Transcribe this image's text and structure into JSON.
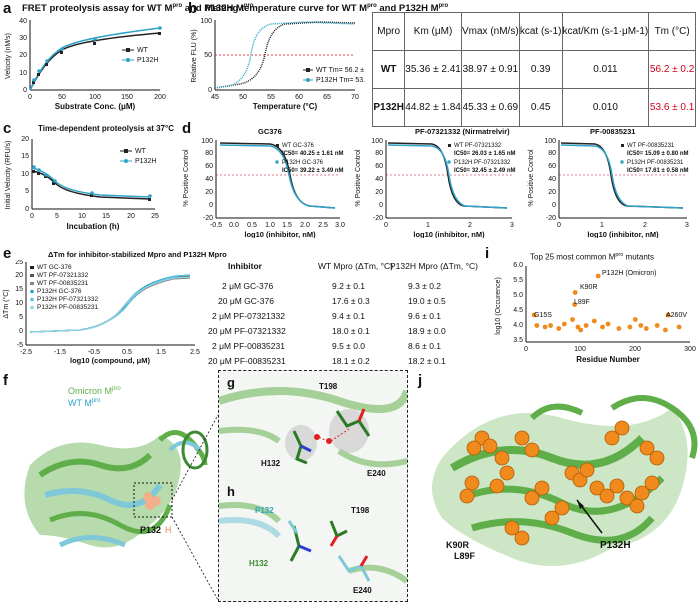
{
  "panels": {
    "a": {
      "label": "a",
      "title": "FRET proteolysis assay for WT M",
      "title_sup": "pro",
      "title_mid": " and P132H M",
      "title_sup2": "pro",
      "xlabel": "Substrate Conc. (μM)",
      "ylabel": "Velocity (nM/s)",
      "legend": [
        "WT",
        "P132H"
      ]
    },
    "b": {
      "label": "b",
      "title": "Melting temperature curve for WT M",
      "title_sup": "pro",
      "title_mid": " and P132H M",
      "title_sup2": "pro",
      "xlabel": "Temperature (°C)",
      "ylabel": "Relative FLU (%)",
      "legend": [
        "WT Tm= 56.2 ± 0.2 °C",
        "P132H Tm= 53.6 ± 0.1 °C"
      ]
    },
    "c": {
      "label": "c",
      "title": "Time-dependent proteolysis at 37°C",
      "xlabel": "Incubation (h)",
      "ylabel": "Initial Velocity (RFU/s)",
      "legend": [
        "WT",
        "P132H"
      ]
    },
    "d": {
      "label": "d",
      "ylabel": "% Positive Control",
      "xlabel": "log10 (inhibitor, nM)",
      "sub": [
        {
          "title": "GC376",
          "wt": "WT GC-376",
          "wt_ic": "IC50= 40.25 ± 1.61 nM",
          "mu": "P132H GC-376",
          "mu_ic": "IC50= 39.22 ± 3.49 nM"
        },
        {
          "title": "PF-07321332 (Nirmatrelvir)",
          "wt": "WT PF-07321332",
          "wt_ic": "IC50= 26.03 ± 1.65 nM",
          "mu": "P132H PF-07321332",
          "mu_ic": "IC50= 32.45 ± 2.49 nM"
        },
        {
          "title": "PF-00835231",
          "wt": "WT PF-00835231",
          "wt_ic": "IC50= 15.09 ± 0.80 nM",
          "mu": "P132H PF-00835231",
          "mu_ic": "IC50= 17.61 ± 0.58 nM"
        }
      ]
    },
    "e": {
      "label": "e",
      "title": "ΔTm for inhibitor-stabilized Mpro and P132H Mpro",
      "xlabel": "log10 (compound, μM)",
      "ylabel": "ΔTm (°C)",
      "legend": [
        "WT GC-376",
        "WT PF-07321332",
        "WT PF-00835231",
        "P132H GC-376",
        "P132H PF-07321332",
        "P132H PF-00835231"
      ],
      "table_head": [
        "Inhibitor",
        "WT Mpro (ΔTm, °C)",
        "P132H Mpro (ΔTm, °C)"
      ],
      "table_rows": [
        [
          "2 μM GC-376",
          "9.2 ± 0.1",
          "9.3 ± 0.2"
        ],
        [
          "20 μM GC-376",
          "17.6 ± 0.3",
          "19.0 ± 0.5"
        ],
        [
          "2 μM PF-07321332",
          "9.4 ± 0.1",
          "9.6 ± 0.1"
        ],
        [
          "20 μM PF-07321332",
          "18.0 ± 0.1",
          "18.9 ± 0.0"
        ],
        [
          "2 μM PF-00835231",
          "9.5 ± 0.0",
          "8.6 ± 0.1"
        ],
        [
          "20 μM PF-00835231",
          "18.1 ± 0.2",
          "18.2 ± 0.1"
        ]
      ]
    },
    "f": {
      "label": "f",
      "legend1": "Omicron M",
      "legend2": "WT M",
      "sup": "pro",
      "residue": "P132",
      "residue_suffix": "H"
    },
    "g": {
      "label": "g",
      "residues": [
        "T198",
        "H132",
        "E240"
      ]
    },
    "h": {
      "label": "h",
      "residues": [
        "P132",
        "T198",
        "H132",
        "E240"
      ]
    },
    "i": {
      "label": "i",
      "title": "Top 25 most common M",
      "title_sup": "pro",
      "title_end": " mutants",
      "xlabel": "Residue Number",
      "ylabel": "log10 (Occurence)",
      "annotations": [
        "P132H (Omicron)",
        "K90R",
        "L89F",
        "G15S",
        "A260V"
      ]
    },
    "j": {
      "label": "j",
      "labels": [
        "K90R",
        "L89F",
        "P132H"
      ]
    }
  },
  "kinetics_table": {
    "headers": [
      "Mpro",
      "Km (μM)",
      "Vmax (nM/s)",
      "kcat (s-1)",
      "kcat/Km (s-1·μM-1)",
      "Tm (°C)"
    ],
    "rows": [
      [
        "WT",
        "35.36 ± 2.41",
        "38.97 ± 0.91",
        "0.39",
        "0.011",
        "56.2 ± 0.2"
      ],
      [
        "P132H",
        "44.82 ± 1.84",
        "45.33 ± 0.69",
        "0.45",
        "0.010",
        "53.6 ± 0.1"
      ]
    ]
  },
  "colors": {
    "wt": "#222222",
    "p132h": "#2ea3c8",
    "red": "#d0021b",
    "green": "#5fae4a",
    "cyan": "#7fc8d8",
    "orange": "#f08a1c",
    "salmon": "#f2b08a"
  },
  "chart_data": [
    {
      "type": "line",
      "panel": "a",
      "xlim": [
        0,
        200
      ],
      "ylim": [
        0,
        40
      ],
      "series": [
        {
          "name": "WT",
          "x": [
            0,
            6,
            12,
            25,
            50,
            100,
            200
          ],
          "y": [
            0,
            5,
            10,
            15,
            23,
            28,
            33
          ]
        },
        {
          "name": "P132H",
          "x": [
            0,
            6,
            12,
            25,
            50,
            100,
            200
          ],
          "y": [
            0,
            5,
            11,
            16,
            24,
            30,
            36
          ]
        }
      ]
    },
    {
      "type": "line",
      "panel": "b",
      "xlim": [
        45,
        70
      ],
      "ylim": [
        0,
        100
      ],
      "series": [
        {
          "name": "WT Tm= 56.2 ± 0.2 °C",
          "tm": 56.2
        },
        {
          "name": "P132H Tm= 53.6 ± 0.1 °C",
          "tm": 53.6
        }
      ]
    },
    {
      "type": "line",
      "panel": "c",
      "xlim": [
        0,
        25
      ],
      "ylim": [
        0,
        20
      ],
      "series": [
        {
          "name": "WT",
          "x": [
            0,
            1,
            2,
            4,
            6,
            12,
            24
          ],
          "y": [
            11,
            10.5,
            10,
            8,
            6,
            4,
            3
          ]
        },
        {
          "name": "P132H",
          "x": [
            0,
            1,
            2,
            4,
            6,
            12,
            24
          ],
          "y": [
            12,
            11,
            10,
            8.5,
            7,
            5,
            3.5
          ]
        }
      ]
    },
    {
      "type": "line",
      "panel": "d-GC376",
      "xlim": [
        -0.5,
        3
      ],
      "ylim": [
        -20,
        120
      ],
      "series": [
        {
          "name": "WT GC-376",
          "ic50": 40.25
        },
        {
          "name": "P132H GC-376",
          "ic50": 39.22
        }
      ]
    },
    {
      "type": "line",
      "panel": "d-PF-07321332",
      "xlim": [
        0,
        3
      ],
      "ylim": [
        -20,
        120
      ],
      "series": [
        {
          "name": "WT PF-07321332",
          "ic50": 26.03
        },
        {
          "name": "P132H PF-07321332",
          "ic50": 32.45
        }
      ]
    },
    {
      "type": "line",
      "panel": "d-PF-00835231",
      "xlim": [
        0,
        3
      ],
      "ylim": [
        -20,
        120
      ],
      "series": [
        {
          "name": "WT PF-00835231",
          "ic50": 15.09
        },
        {
          "name": "P132H PF-00835231",
          "ic50": 17.61
        }
      ]
    },
    {
      "type": "line",
      "panel": "e",
      "xlim": [
        -2.5,
        2.5
      ],
      "ylim": [
        -5,
        25
      ],
      "series": [
        {
          "name": "WT GC-376"
        },
        {
          "name": "WT PF-07321332"
        },
        {
          "name": "WT PF-00835231"
        },
        {
          "name": "P132H GC-376"
        },
        {
          "name": "P132H PF-07321332"
        },
        {
          "name": "P132H PF-00835231"
        }
      ]
    },
    {
      "type": "scatter",
      "panel": "i",
      "xlim": [
        0,
        300
      ],
      "ylim": [
        3.5,
        6
      ],
      "points": [
        [
          132,
          5.7
        ],
        [
          90,
          5.15
        ],
        [
          89,
          4.75
        ],
        [
          15,
          4.4
        ],
        [
          260,
          4.4
        ],
        [
          20,
          4.05
        ],
        [
          35,
          4.0
        ],
        [
          45,
          4.05
        ],
        [
          60,
          3.95
        ],
        [
          70,
          4.1
        ],
        [
          85,
          4.25
        ],
        [
          95,
          4.0
        ],
        [
          100,
          3.9
        ],
        [
          110,
          4.05
        ],
        [
          125,
          4.2
        ],
        [
          140,
          4.0
        ],
        [
          150,
          4.1
        ],
        [
          170,
          3.95
        ],
        [
          190,
          4.0
        ],
        [
          200,
          4.25
        ],
        [
          210,
          4.05
        ],
        [
          220,
          3.95
        ],
        [
          240,
          4.05
        ],
        [
          255,
          3.9
        ],
        [
          280,
          4.0
        ]
      ]
    }
  ]
}
